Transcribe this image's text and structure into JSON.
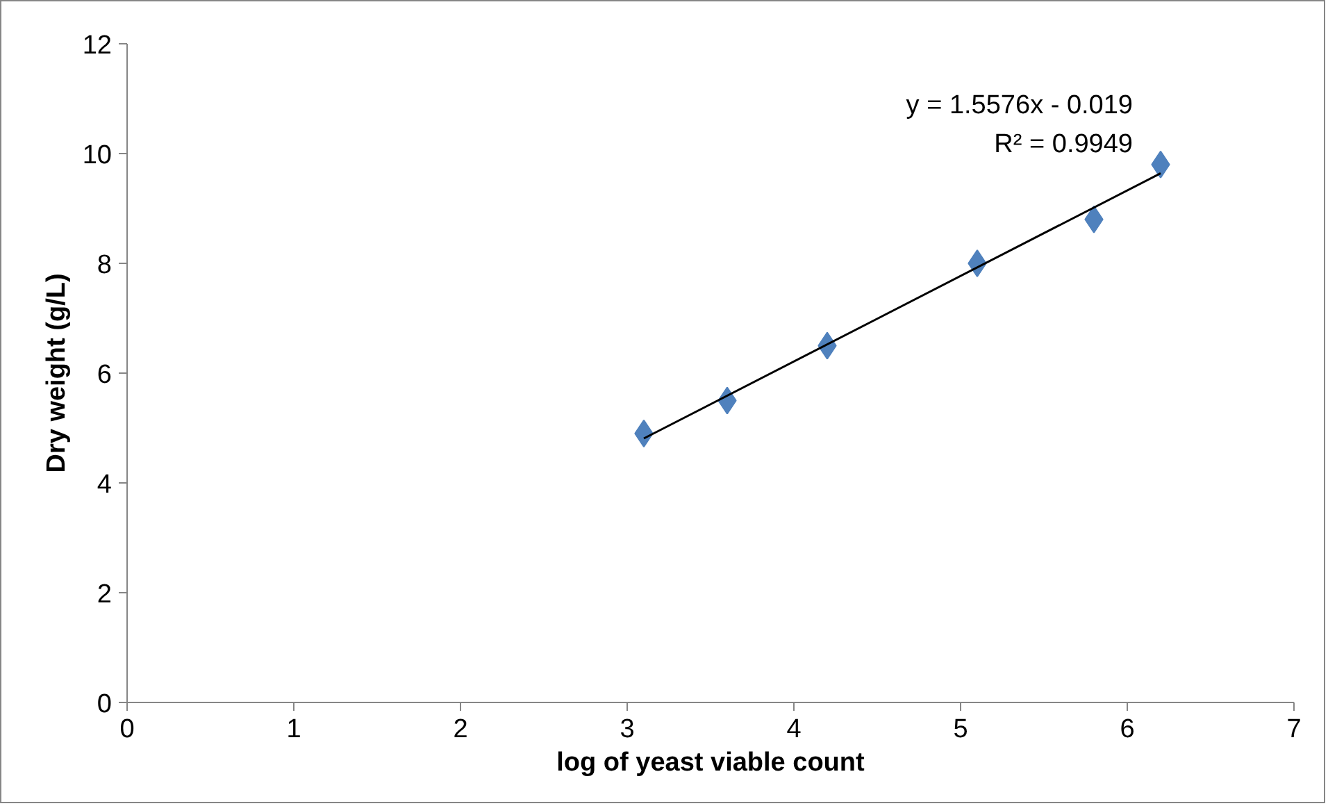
{
  "chart_data": {
    "type": "scatter",
    "xlabel": "log of yeast viable count",
    "ylabel": "Dry weight (g/L)",
    "xlim": [
      0,
      7
    ],
    "xticks": [
      0,
      1,
      2,
      3,
      4,
      5,
      6,
      7
    ],
    "ylim": [
      0,
      12
    ],
    "yticks": [
      0,
      2,
      4,
      6,
      8,
      10,
      12
    ],
    "grid": false,
    "series": [
      {
        "color": "#4f81bd",
        "marker": "diamond",
        "x": [
          3.1,
          3.6,
          4.2,
          5.1,
          5.8,
          6.2
        ],
        "values": [
          4.9,
          5.5,
          6.5,
          8.0,
          8.8,
          9.8
        ]
      },
      {
        "type": "line",
        "color": "#000000",
        "marker": "none",
        "x": [
          3.1,
          6.2
        ],
        "values": [
          4.81,
          9.64
        ]
      }
    ],
    "annotations": [
      "y = 1.5576x - 0.019",
      "R² = 0.9949"
    ]
  }
}
